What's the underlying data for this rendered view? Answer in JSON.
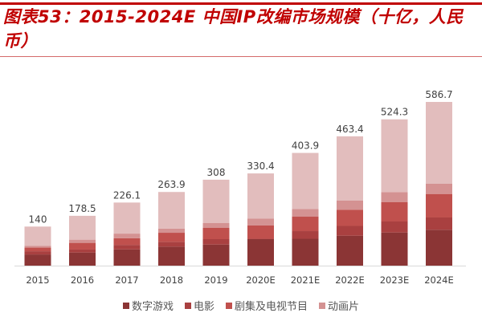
{
  "title": "图表53：2015-2024E 中国IP改编市场规模（十亿，人民币）",
  "chart_data": {
    "type": "bar",
    "stacked": true,
    "title": "图表53：2015-2024E 中国IP改编市场规模（十亿，人民币）",
    "xlabel": "",
    "ylabel": "",
    "categories": [
      "2015",
      "2016",
      "2017",
      "2018",
      "2019",
      "2020E",
      "2021E",
      "2022E",
      "2023E",
      "2024E"
    ],
    "totals": [
      140,
      178.5,
      226.1,
      263.9,
      308,
      330.4,
      403.9,
      463.4,
      524.3,
      586.7
    ],
    "total_labels": [
      "140",
      "178.5",
      "226.1",
      "263.9",
      "308",
      "330.4",
      "403.9",
      "463.4",
      "524.3",
      "586.7"
    ],
    "series": [
      {
        "name": "数字游戏",
        "color": "#8B3535",
        "values": [
          40,
          47,
          58,
          68,
          75.6,
          95,
          96.3,
          107.3,
          118.8,
          128.6
        ]
      },
      {
        "name": "电影",
        "color": "#A94040",
        "values": [
          11.5,
          10.6,
          16.4,
          17.3,
          19.3,
          1.4,
          27.3,
          35.1,
          39.4,
          44
        ]
      },
      {
        "name": "剧集及电视节目",
        "color": "#C0504D",
        "values": [
          13,
          24,
          24,
          32.5,
          40.3,
          47.5,
          51.8,
          58.1,
          69.9,
          84.3
        ]
      },
      {
        "name": "动画片",
        "color": "#D49292",
        "values": [
          6,
          11.5,
          16.4,
          15.2,
          18.1,
          24.4,
          27.9,
          32.5,
          35.7,
          36.5
        ]
      },
      {
        "name": "",
        "color": "#E2BDBD",
        "in_legend": false,
        "values": [
          69.5,
          85.4,
          111.3,
          130.9,
          154.7,
          162.1,
          200.6,
          230.4,
          260.5,
          293.3
        ]
      }
    ],
    "ylim": [
      0,
      586.7
    ],
    "grid": false,
    "legend": "bottom"
  }
}
